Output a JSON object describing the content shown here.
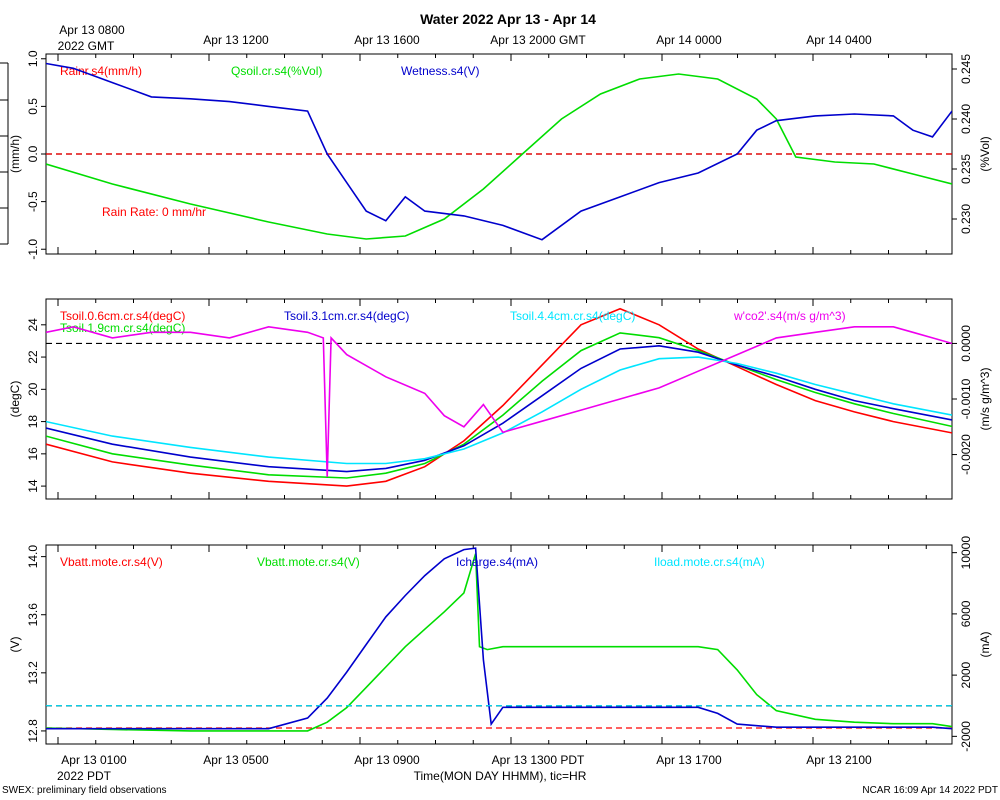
{
  "page": {
    "title": "Water 2022 Apr 13 - Apr 14",
    "top_axis_first_line1": "Apr 13 0800",
    "top_axis_first_line2": "2022 GMT",
    "top_axis_labels": [
      "Apr 13 1200",
      "Apr 13 1600",
      "Apr 13 2000 GMT",
      "Apr 14 0000",
      "Apr 14 0400"
    ],
    "bottom_axis_first_line1": "Apr 13 0100",
    "bottom_axis_first_line2": "2022 PDT",
    "bottom_axis_labels": [
      "Apr 13 0500",
      "Apr 13 0900",
      "Apr 13 1300 PDT",
      "Apr 13 1700",
      "Apr 13 2100"
    ],
    "xlabel": "Time(MON DAY HHMM), tic=HR",
    "footer_left": "SWEX: preliminary field observations",
    "footer_right": "NCAR 16:09 Apr 14 2022 PDT"
  },
  "colors": {
    "red": "#ff0000",
    "green": "#00dd00",
    "blue": "#0000cc",
    "cyan": "#00e5ff",
    "magenta": "#ee00ee",
    "black": "#000000"
  },
  "chart_data": [
    {
      "type": "line",
      "x_unit": "hours since Apr 13 00:00 PDT",
      "xlim": [
        0.3,
        23.5
      ],
      "ylabel_left": "(mm/h)",
      "ylabel_right": "(%Vol)",
      "ylim_left": [
        -1.05,
        1.05
      ],
      "ylim_right": [
        0.2265,
        0.2465
      ],
      "yticks_left": [
        "1.0",
        "0.5",
        "0.0",
        "-0.5",
        "-1.0"
      ],
      "yticks_right": [
        "0.245",
        "0.240",
        "0.235",
        "0.230"
      ],
      "annotation": "Rain Rate: 0 mm/hr",
      "series": [
        {
          "name": "Rainr.s4(mm/h)",
          "color": "red",
          "axis": "left",
          "x": [
            0.3,
            23.5
          ],
          "y": [
            0.0,
            0.0
          ]
        },
        {
          "name": "Qsoil.cr.s4(%Vol)",
          "color": "green",
          "axis": "right",
          "x": [
            0.3,
            2,
            4,
            6,
            7.5,
            8.5,
            9.5,
            10.5,
            11.5,
            12.5,
            13.5,
            14.5,
            15.5,
            16.5,
            17.5,
            18.5,
            19,
            19.5,
            20.5,
            21.5,
            22.5,
            23.5
          ],
          "y": [
            0.2355,
            0.2335,
            0.2315,
            0.2297,
            0.2285,
            0.228,
            0.2283,
            0.23,
            0.233,
            0.2365,
            0.24,
            0.2425,
            0.244,
            0.2445,
            0.244,
            0.242,
            0.24,
            0.2362,
            0.2357,
            0.2355,
            0.2345,
            0.2335
          ]
        },
        {
          "name": "Wetness.s4(V)",
          "color": "blue",
          "axis": "left",
          "x": [
            0.3,
            1,
            2,
            3,
            4,
            5,
            6,
            7,
            7.5,
            8,
            8.5,
            9,
            9.5,
            10,
            11,
            12,
            13,
            14,
            15,
            16,
            17,
            18,
            18.5,
            19,
            20,
            21,
            22,
            22.5,
            23,
            23.5
          ],
          "y": [
            0.95,
            0.9,
            0.75,
            0.6,
            0.58,
            0.55,
            0.5,
            0.45,
            0.0,
            -0.3,
            -0.6,
            -0.7,
            -0.45,
            -0.6,
            -0.65,
            -0.75,
            -0.9,
            -0.6,
            -0.45,
            -0.3,
            -0.2,
            0.0,
            0.25,
            0.35,
            0.4,
            0.42,
            0.4,
            0.25,
            0.18,
            0.45
          ]
        }
      ]
    },
    {
      "type": "line",
      "x_unit": "hours since Apr 13 00:00 PDT",
      "xlim": [
        0.3,
        23.5
      ],
      "ylabel_left": "(degC)",
      "ylabel_right": "(m/s g/m^3)",
      "ylim_left": [
        13.2,
        25.6
      ],
      "ylim_right": [
        -0.0028,
        0.0008
      ],
      "yticks_left": [
        "24",
        "22",
        "20",
        "18",
        "16",
        "14"
      ],
      "yticks_right": [
        "0.0000",
        "-0.0010",
        "-0.0020"
      ],
      "series": [
        {
          "name": "Tsoil.0.6cm.cr.s4(degC)",
          "color": "red",
          "axis": "left",
          "x": [
            0.3,
            2,
            4,
            6,
            8,
            9,
            10,
            11,
            12,
            13,
            14,
            15,
            16,
            17,
            18,
            19,
            20,
            21,
            22,
            23.5
          ],
          "y": [
            16.6,
            15.5,
            14.8,
            14.3,
            14.0,
            14.3,
            15.2,
            16.8,
            19.0,
            21.5,
            24.0,
            25.0,
            24.0,
            22.5,
            21.4,
            20.3,
            19.3,
            18.6,
            18.0,
            17.3
          ]
        },
        {
          "name": "Tsoil.1.9cm.cr.s4(degC)",
          "color": "green",
          "axis": "left",
          "x": [
            0.3,
            2,
            4,
            6,
            8,
            9,
            10,
            11,
            12,
            13,
            14,
            15,
            16,
            17,
            18,
            19,
            20,
            21,
            22,
            23.5
          ],
          "y": [
            17.1,
            16.0,
            15.3,
            14.7,
            14.5,
            14.8,
            15.4,
            16.6,
            18.4,
            20.5,
            22.4,
            23.5,
            23.2,
            22.4,
            21.5,
            20.6,
            19.8,
            19.1,
            18.5,
            17.7
          ]
        },
        {
          "name": "Tsoil.3.1cm.cr.s4(degC)",
          "color": "blue",
          "axis": "left",
          "x": [
            0.3,
            2,
            4,
            6,
            8,
            9,
            10,
            11,
            12,
            13,
            14,
            15,
            16,
            17,
            18,
            19,
            20,
            21,
            22,
            23.5
          ],
          "y": [
            17.6,
            16.6,
            15.8,
            15.2,
            14.9,
            15.1,
            15.6,
            16.5,
            17.9,
            19.6,
            21.3,
            22.5,
            22.7,
            22.3,
            21.5,
            20.8,
            20.0,
            19.3,
            18.8,
            18.1
          ]
        },
        {
          "name": "Tsoil.4.4cm.cr.s4(degC)",
          "color": "cyan",
          "axis": "left",
          "x": [
            0.3,
            2,
            4,
            6,
            8,
            9,
            10,
            11,
            12,
            13,
            14,
            15,
            16,
            17,
            18,
            19,
            20,
            21,
            22,
            23.5
          ],
          "y": [
            18.0,
            17.1,
            16.4,
            15.8,
            15.4,
            15.4,
            15.7,
            16.3,
            17.3,
            18.6,
            20.0,
            21.2,
            21.9,
            22.0,
            21.6,
            21.0,
            20.3,
            19.7,
            19.1,
            18.4
          ]
        },
        {
          "name": "w'co2'.s4(m/s g/m^3)",
          "color": "magenta",
          "axis": "right",
          "x": [
            0.3,
            1,
            2,
            3,
            4,
            5,
            6,
            7,
            7.4,
            7.5,
            7.6,
            8,
            9,
            10,
            10.5,
            11,
            11.5,
            12,
            13,
            14,
            15,
            16,
            17,
            18,
            19,
            20,
            21,
            22,
            22.5,
            23,
            23.5
          ],
          "y": [
            0.0002,
            0.0003,
            0.0001,
            0.0002,
            0.0002,
            0.0001,
            0.0003,
            0.0002,
            0.0001,
            -0.0024,
            0.0001,
            -0.0002,
            -0.0006,
            -0.0009,
            -0.0013,
            -0.0015,
            -0.0011,
            -0.0016,
            -0.0014,
            -0.0012,
            -0.001,
            -0.0008,
            -0.0005,
            -0.0002,
            0.0001,
            0.0002,
            0.0003,
            0.0003,
            0.0002,
            0.0001,
            0.0
          ]
        }
      ]
    },
    {
      "type": "line",
      "x_unit": "hours since Apr 13 00:00 PDT",
      "xlim": [
        0.3,
        23.5
      ],
      "ylabel_left": "(V)",
      "ylabel_right": "(mA)",
      "ylim_left": [
        12.71,
        14.08
      ],
      "ylim_right": [
        -2500,
        10500
      ],
      "yticks_left": [
        "14.0",
        "13.6",
        "13.2",
        "12.8"
      ],
      "yticks_right": [
        "10000",
        "6000",
        "2000",
        "-2000"
      ],
      "series": [
        {
          "name": "Vbatt.mote.cr.s4(V)",
          "color": "red",
          "axis": "left",
          "x": [
            0.3,
            23.5
          ],
          "y": [
            12.82,
            12.82
          ]
        },
        {
          "name": "Vbatt.mote.cr.s4(V)",
          "color": "green",
          "axis": "left",
          "x": [
            0.3,
            2,
            4,
            5,
            6,
            7,
            7.5,
            8,
            8.5,
            9,
            9.5,
            10,
            10.5,
            11,
            11.3,
            11.4,
            11.6,
            12,
            13,
            14,
            15,
            16,
            17,
            17.5,
            18,
            18.5,
            19,
            20,
            21,
            22,
            23,
            23.5
          ],
          "y": [
            12.82,
            12.81,
            12.8,
            12.8,
            12.8,
            12.8,
            12.86,
            12.96,
            13.1,
            13.24,
            13.38,
            13.5,
            13.62,
            13.75,
            14.02,
            13.38,
            13.36,
            13.38,
            13.38,
            13.38,
            13.38,
            13.38,
            13.38,
            13.36,
            13.22,
            13.05,
            12.94,
            12.88,
            12.86,
            12.85,
            12.85,
            12.83
          ]
        },
        {
          "name": "Icharge.s4(mA)",
          "color": "blue",
          "axis": "right",
          "x": [
            0.3,
            2,
            4,
            6,
            7,
            7.5,
            8,
            8.5,
            9,
            9.5,
            10,
            10.5,
            11,
            11.3,
            11.5,
            11.7,
            12,
            13,
            14,
            15,
            16,
            17,
            17.5,
            18,
            19,
            20,
            21,
            22,
            23,
            23.5
          ],
          "y": [
            -1500,
            -1500,
            -1500,
            -1500,
            -800,
            500,
            2200,
            4000,
            5800,
            7200,
            8500,
            9600,
            10200,
            10300,
            3000,
            -1200,
            -100,
            -100,
            -100,
            -100,
            -100,
            -100,
            -500,
            -1200,
            -1400,
            -1400,
            -1400,
            -1400,
            -1400,
            -1500
          ]
        },
        {
          "name": "Iload.mote.cr.s4(mA)",
          "color": "cyan",
          "axis": "right",
          "x": [
            0.3,
            23.5
          ],
          "y": [
            0,
            0
          ]
        }
      ]
    }
  ]
}
